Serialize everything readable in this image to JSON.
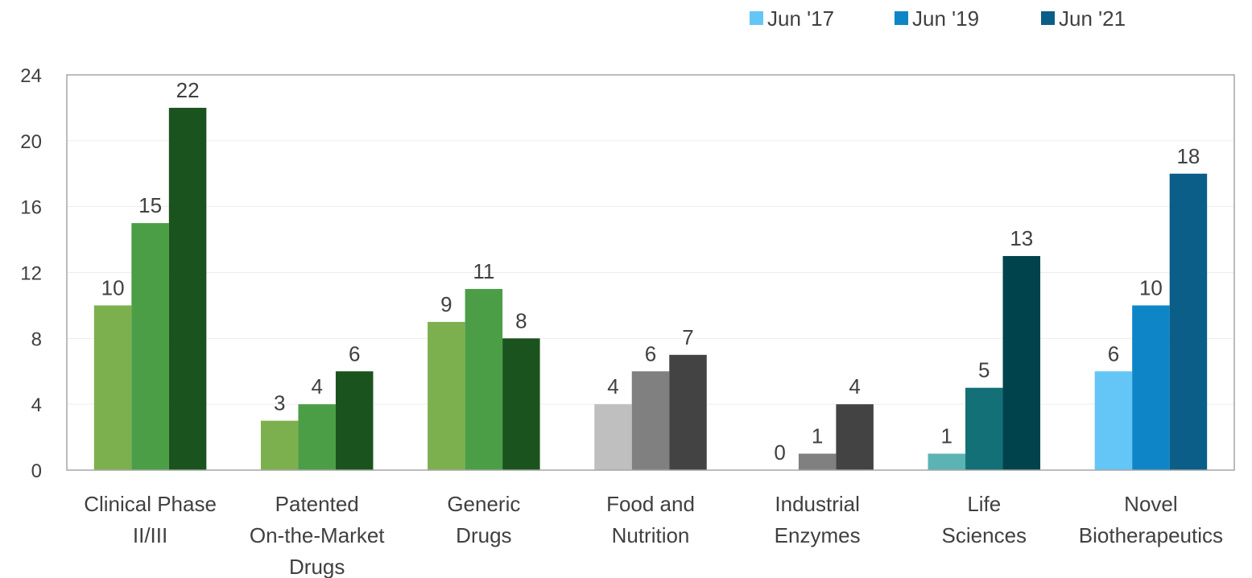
{
  "chart_data": {
    "type": "bar",
    "categories": [
      [
        "Clinical Phase",
        "II/III"
      ],
      [
        "Patented",
        "On-the-Market",
        "Drugs"
      ],
      [
        "Generic",
        "Drugs"
      ],
      [
        "Food and",
        "Nutrition"
      ],
      [
        "Industrial",
        "Enzymes"
      ],
      [
        "Life",
        "Sciences"
      ],
      [
        "Novel",
        "Biotherapeutics"
      ]
    ],
    "series": [
      {
        "name": "Jun '17",
        "values": [
          10,
          3,
          9,
          4,
          0,
          1,
          6
        ]
      },
      {
        "name": "Jun '19",
        "values": [
          15,
          4,
          11,
          6,
          1,
          5,
          10
        ]
      },
      {
        "name": "Jun '21",
        "values": [
          22,
          6,
          8,
          7,
          4,
          13,
          18
        ]
      }
    ],
    "bar_colors": [
      [
        "#7CB04F",
        "#4B9E45",
        "#1B531E"
      ],
      [
        "#7CB04F",
        "#4B9E45",
        "#1B531E"
      ],
      [
        "#7CB04F",
        "#4B9E45",
        "#1B531E"
      ],
      [
        "#BFBFBF",
        "#808080",
        "#434343"
      ],
      [
        "#BFBFBF",
        "#808080",
        "#434343"
      ],
      [
        "#5CB3B4",
        "#127076",
        "#00434D"
      ],
      [
        "#64C6F6",
        "#0E85C6",
        "#0A5E88"
      ]
    ],
    "legend_colors": [
      "#64C6F6",
      "#0E85C6",
      "#0A5E88"
    ],
    "ylim": [
      0,
      24
    ],
    "yticks": [
      0,
      4,
      8,
      12,
      16,
      20,
      24
    ],
    "grid": true,
    "legend_position": "top-right",
    "xlabel": "",
    "ylabel": "",
    "title": ""
  }
}
